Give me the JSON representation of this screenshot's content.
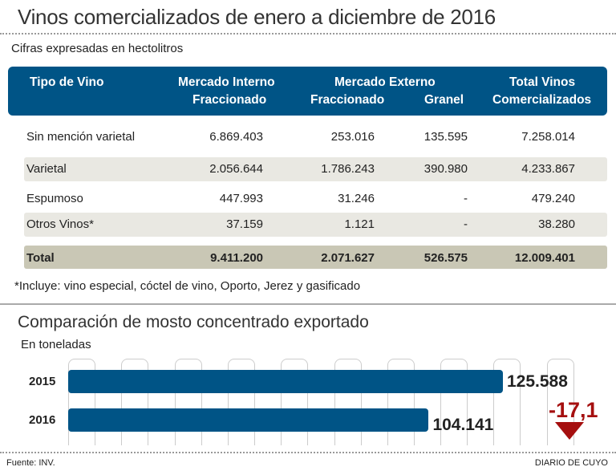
{
  "title": "Vinos comercializados de enero a diciembre de 2016",
  "subtitle": "Cifras expresadas en hectolitros",
  "table": {
    "headers": {
      "tipo": "Tipo de Vino",
      "interno_1": "Mercado Interno",
      "interno_2": "Fraccionado",
      "externo": "Mercado Externo",
      "ext_fracc": "Fraccionado",
      "ext_granel": "Granel",
      "total_1": "Total Vinos",
      "total_2": "Comercializados"
    },
    "rows": [
      [
        "Sin mención varietal",
        "6.869.403",
        "253.016",
        "135.595",
        "7.258.014"
      ],
      [
        "Varietal",
        "2.056.644",
        "1.786.243",
        "390.980",
        "4.233.867"
      ],
      [
        "Espumoso",
        "447.993",
        "31.246",
        "-",
        "479.240"
      ],
      [
        "Otros Vinos*",
        "37.159",
        "1.121",
        "-",
        "38.280"
      ]
    ],
    "total": [
      "Total",
      "9.411.200",
      "2.071.627",
      "526.575",
      "12.009.401"
    ]
  },
  "footnote": "*Incluye: vino especial, cóctel de vino, Oporto, Jerez y gasificado",
  "chart_data": {
    "type": "bar",
    "title": "Comparación de mosto concentrado exportado",
    "subtitle": "En toneladas",
    "categories": [
      "2015",
      "2016"
    ],
    "values": [
      125588,
      104141
    ],
    "value_labels": [
      "125.588",
      "104.141"
    ],
    "change_label": "-17,1",
    "colors": {
      "bar": "#005486",
      "change": "#a50f0f"
    },
    "orientation": "horizontal"
  },
  "footer": {
    "source": "Fuente: INV.",
    "brand": "DIARIO DE CUYO"
  }
}
